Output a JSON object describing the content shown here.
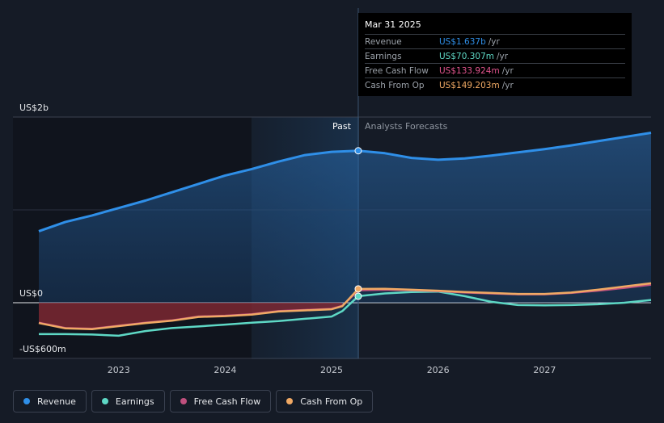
{
  "tooltip": {
    "date": "Mar 31 2025",
    "rows": [
      {
        "name": "Revenue",
        "value": "US$1.637b",
        "unit": "/yr",
        "color": "#2f8fe8"
      },
      {
        "name": "Earnings",
        "value": "US$70.307m",
        "unit": "/yr",
        "color": "#5ed8c5"
      },
      {
        "name": "Free Cash Flow",
        "value": "US$133.924m",
        "unit": "/yr",
        "color": "#e3558e"
      },
      {
        "name": "Cash From Op",
        "value": "US$149.203m",
        "unit": "/yr",
        "color": "#f0a964"
      }
    ]
  },
  "legend": [
    {
      "label": "Revenue",
      "color": "#2f8fe8"
    },
    {
      "label": "Earnings",
      "color": "#5ed8c5"
    },
    {
      "label": "Free Cash Flow",
      "color": "#c0507e"
    },
    {
      "label": "Cash From Op",
      "color": "#f0a964"
    }
  ],
  "chart_data": {
    "type": "line",
    "divider_label": "Past",
    "forecast_label": "Analysts Forecasts",
    "divider_x": 2025.25,
    "xlim": [
      2022.25,
      2028.0
    ],
    "ylim": [
      -600,
      2000
    ],
    "y_ticks": [
      {
        "value": 2000,
        "label": "US$2b"
      },
      {
        "value": 0,
        "label": "US$0"
      },
      {
        "value": -600,
        "label": "-US$600m"
      }
    ],
    "x_ticks": [
      {
        "value": 2023,
        "label": "2023"
      },
      {
        "value": 2024,
        "label": "2024"
      },
      {
        "value": 2025,
        "label": "2025"
      },
      {
        "value": 2026,
        "label": "2026"
      },
      {
        "value": 2027,
        "label": "2027"
      }
    ],
    "series": [
      {
        "name": "Revenue",
        "color": "#2f8fe8",
        "x": [
          2022.25,
          2022.5,
          2022.75,
          2023.0,
          2023.25,
          2023.5,
          2023.75,
          2024.0,
          2024.25,
          2024.5,
          2024.75,
          2025.0,
          2025.25,
          2025.5,
          2025.75,
          2026.0,
          2026.25,
          2026.5,
          2026.75,
          2027.0,
          2027.25,
          2027.5,
          2027.75,
          2028.0
        ],
        "y": [
          770,
          870,
          940,
          1020,
          1100,
          1190,
          1280,
          1370,
          1440,
          1520,
          1590,
          1625,
          1637,
          1610,
          1560,
          1540,
          1555,
          1585,
          1620,
          1655,
          1695,
          1740,
          1785,
          1830
        ]
      },
      {
        "name": "Earnings",
        "color": "#5ed8c5",
        "x": [
          2022.25,
          2022.5,
          2022.75,
          2023.0,
          2023.25,
          2023.5,
          2023.75,
          2024.0,
          2024.25,
          2024.5,
          2024.75,
          2025.0,
          2025.1,
          2025.25,
          2025.5,
          2025.75,
          2026.0,
          2026.25,
          2026.5,
          2026.75,
          2027.0,
          2027.25,
          2027.5,
          2027.75,
          2028.0
        ],
        "y": [
          -410,
          -410,
          -415,
          -430,
          -370,
          -330,
          -310,
          -285,
          -260,
          -240,
          -210,
          -180,
          -110,
          70,
          100,
          115,
          120,
          70,
          10,
          -30,
          -35,
          -30,
          -20,
          0,
          30
        ]
      },
      {
        "name": "Free Cash Flow",
        "color": "#c0507e",
        "x": [
          2022.25,
          2022.5,
          2022.75,
          2023.0,
          2023.25,
          2023.5,
          2023.75,
          2024.0,
          2024.25,
          2024.5,
          2024.75,
          2025.0,
          2025.1,
          2025.25,
          2025.5,
          2025.75,
          2026.0,
          2026.25,
          2026.5,
          2026.75,
          2027.0,
          2027.25,
          2027.5,
          2027.75,
          2028.0
        ],
        "y": [
          -260,
          -330,
          -340,
          -300,
          -260,
          -230,
          -180,
          -170,
          -150,
          -110,
          -95,
          -80,
          -40,
          134,
          140,
          135,
          125,
          110,
          100,
          90,
          90,
          105,
          130,
          160,
          195
        ]
      },
      {
        "name": "Cash From Op",
        "color": "#f0a964",
        "x": [
          2022.25,
          2022.5,
          2022.75,
          2023.0,
          2023.25,
          2023.5,
          2023.75,
          2024.0,
          2024.25,
          2024.5,
          2024.75,
          2025.0,
          2025.1,
          2025.25,
          2025.5,
          2025.75,
          2026.0,
          2026.25,
          2026.5,
          2026.75,
          2027.0,
          2027.25,
          2027.5,
          2027.75,
          2028.0
        ],
        "y": [
          -265,
          -335,
          -345,
          -305,
          -265,
          -235,
          -185,
          -175,
          -155,
          -115,
          -100,
          -85,
          -45,
          149,
          150,
          140,
          130,
          115,
          105,
          95,
          95,
          110,
          140,
          175,
          210
        ]
      }
    ]
  }
}
